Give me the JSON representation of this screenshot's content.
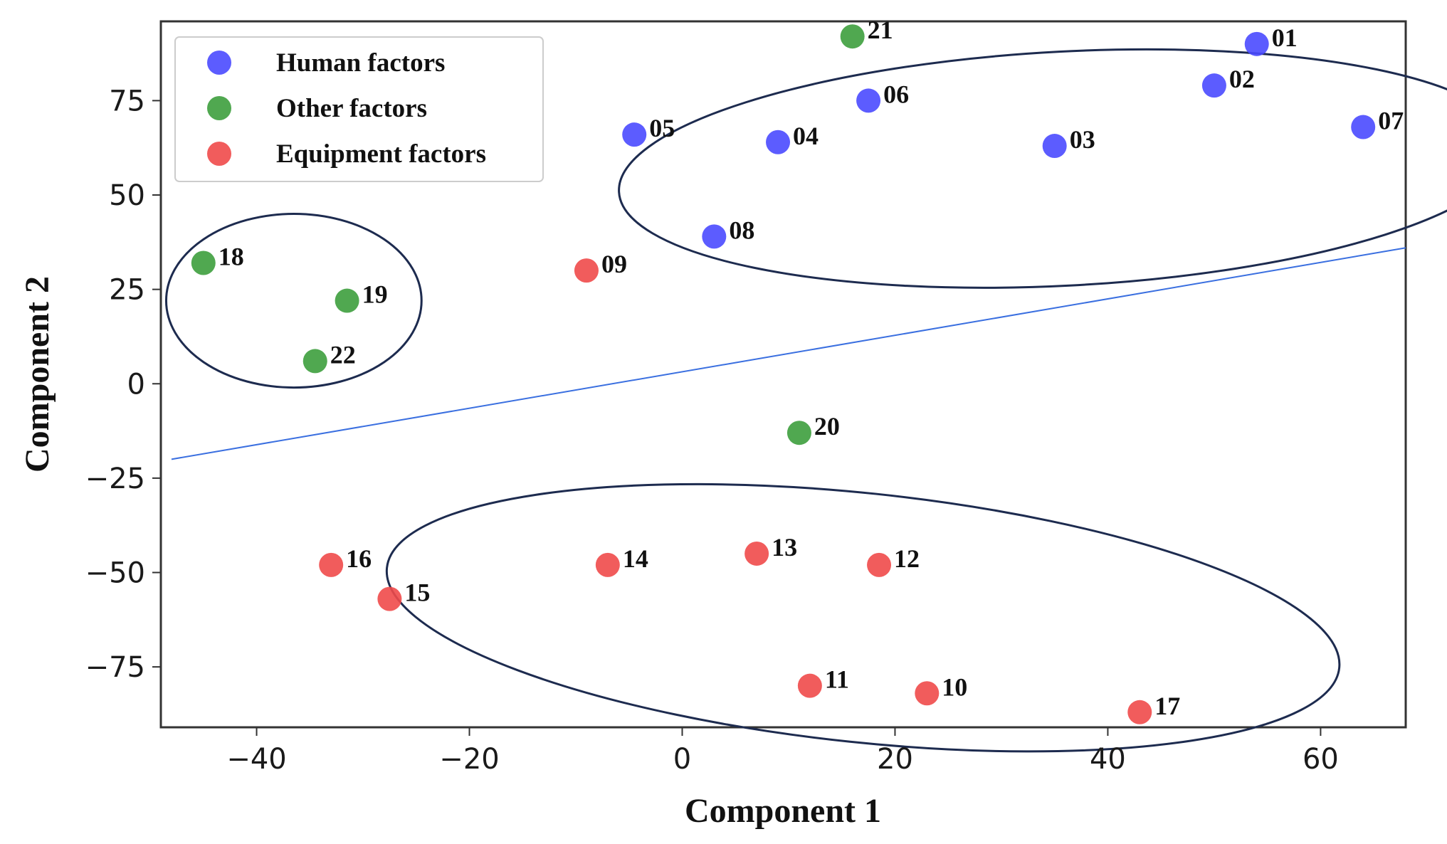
{
  "chart_data": {
    "type": "scatter",
    "title": "",
    "xlabel": "Component 1",
    "ylabel": "Component 2",
    "xlim": [
      -49,
      68
    ],
    "ylim": [
      -91,
      96
    ],
    "xticks": [
      -40,
      -20,
      0,
      20,
      40,
      60
    ],
    "yticks": [
      75,
      50,
      25,
      0,
      -25,
      -50,
      -75
    ],
    "xtick_labels": [
      "−40",
      "−20",
      "0",
      "20",
      "40",
      "60"
    ],
    "ytick_labels": [
      "75",
      "50",
      "25",
      "0",
      "−25",
      "−50",
      "−75"
    ],
    "grid": false,
    "legend_position": "top-left",
    "series": [
      {
        "name": "Human factors",
        "color": "#4a4aff",
        "points": [
          {
            "label": "01",
            "x": 54,
            "y": 90
          },
          {
            "label": "02",
            "x": 50,
            "y": 79
          },
          {
            "label": "03",
            "x": 35,
            "y": 63
          },
          {
            "label": "04",
            "x": 9,
            "y": 64
          },
          {
            "label": "05",
            "x": -4.5,
            "y": 66
          },
          {
            "label": "06",
            "x": 17.5,
            "y": 75
          },
          {
            "label": "07",
            "x": 64,
            "y": 68
          },
          {
            "label": "08",
            "x": 3,
            "y": 39
          }
        ]
      },
      {
        "name": "Other factors",
        "color": "#3d9e3d",
        "points": [
          {
            "label": "18",
            "x": -45,
            "y": 32
          },
          {
            "label": "19",
            "x": -31.5,
            "y": 22
          },
          {
            "label": "20",
            "x": 11,
            "y": -13
          },
          {
            "label": "21",
            "x": 16,
            "y": 92
          },
          {
            "label": "22",
            "x": -34.5,
            "y": 6
          }
        ]
      },
      {
        "name": "Equipment factors",
        "color": "#f04a4a",
        "points": [
          {
            "label": "09",
            "x": -9,
            "y": 30
          },
          {
            "label": "10",
            "x": 23,
            "y": -82
          },
          {
            "label": "11",
            "x": 12,
            "y": -80
          },
          {
            "label": "12",
            "x": 18.5,
            "y": -48
          },
          {
            "label": "13",
            "x": 7,
            "y": -45
          },
          {
            "label": "14",
            "x": -7,
            "y": -48
          },
          {
            "label": "15",
            "x": -27.5,
            "y": -57
          },
          {
            "label": "16",
            "x": -33,
            "y": -48
          },
          {
            "label": "17",
            "x": 43,
            "y": -87
          }
        ]
      }
    ],
    "annotations": {
      "separator_line": {
        "color": "#3a6fe0",
        "from": {
          "x": -48,
          "y": -20
        },
        "to": {
          "x": 68,
          "y": 36
        }
      },
      "cluster_ellipses": [
        {
          "name": "human",
          "cx": 36,
          "cy": 57,
          "rx": 42,
          "ry": 31,
          "rotation_deg": -3
        },
        {
          "name": "other",
          "cx": -36.5,
          "cy": 22,
          "rx": 12,
          "ry": 23,
          "rotation_deg": 0
        },
        {
          "name": "equipment",
          "cx": 17,
          "cy": -62,
          "rx": 45,
          "ry": 33,
          "rotation_deg": 6
        }
      ],
      "ellipse_color": "#1d2b4f"
    }
  }
}
